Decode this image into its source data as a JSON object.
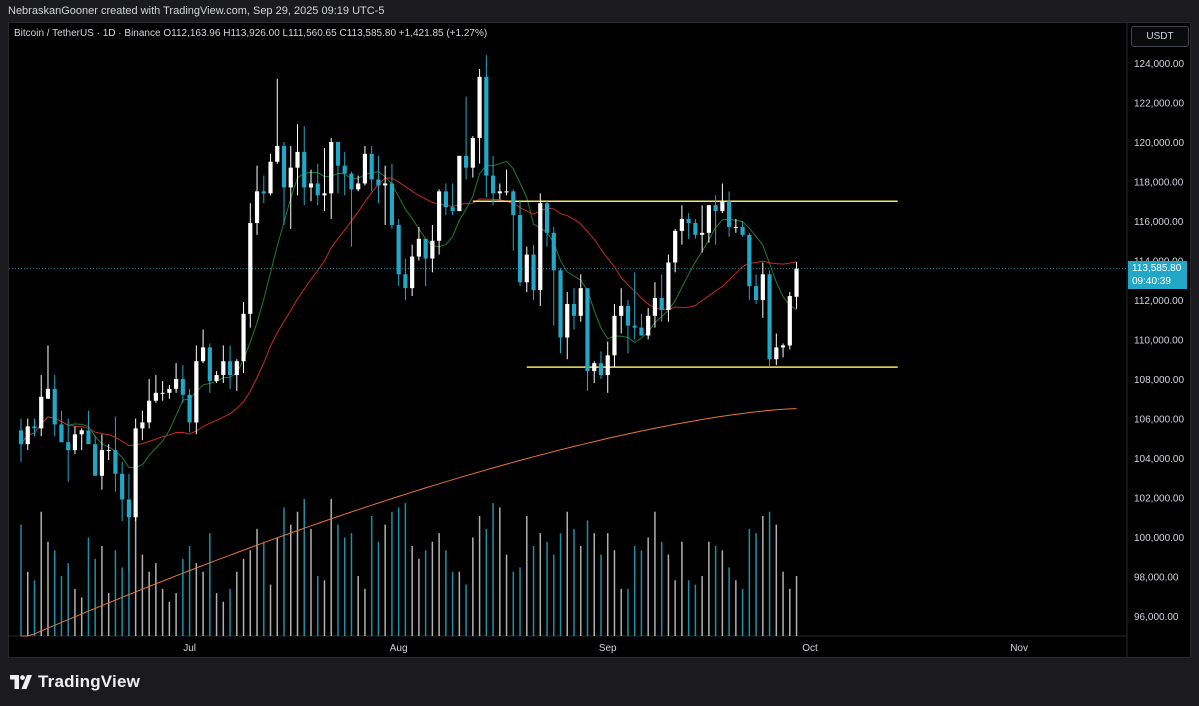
{
  "header": {
    "created_note": "NebraskanGooner created with TradingView.com, Sep 29, 2025 09:19 UTC-5"
  },
  "legend": {
    "symbol": "Bitcoin / TetherUS · 1D · Binance",
    "o_label": "O",
    "o_value": "112,163.96",
    "h_label": "H",
    "h_value": "113,926.00",
    "l_label": "L",
    "l_value": "111,560.65",
    "c_label": "C",
    "c_value": "113,585.80",
    "change": "+1,421.85 (+1.27%)"
  },
  "currency_button": "USDT",
  "price_tag": {
    "price": "113,585.80",
    "countdown": "09:40:39"
  },
  "footer": {
    "logo_text": "TradingView"
  },
  "colors": {
    "background": "#000000",
    "up_candle": "#ffffff",
    "down_candle": "#22a8c6",
    "ma_short": "#1e7a3a",
    "ma_medium": "#c42a2a",
    "ma_long": "#e2773a",
    "levels": "#f5e663",
    "axis_text": "#d1d4dc"
  },
  "chart_data": {
    "type": "candlestick",
    "title": "Bitcoin / TetherUS · 1D · Binance",
    "y_axis": {
      "ticks": [
        96000,
        98000,
        100000,
        102000,
        104000,
        106000,
        108000,
        110000,
        112000,
        114000,
        116000,
        118000,
        120000,
        122000,
        124000
      ],
      "tick_labels": [
        "96,000.00",
        "98,000.00",
        "100,000.00",
        "102,000.00",
        "104,000.00",
        "106,000.00",
        "108,000.00",
        "110,000.00",
        "112,000.00",
        "114,000.00",
        "116,000.00",
        "118,000.00",
        "120,000.00",
        "122,000.00",
        "124,000.00"
      ],
      "ylim": [
        95000,
        125500
      ]
    },
    "x_axis": {
      "labels": [
        "Jul",
        "Aug",
        "Sep",
        "Oct",
        "Nov"
      ],
      "label_dates": [
        "2025-07-01",
        "2025-08-01",
        "2025-09-01",
        "2025-10-01",
        "2025-11-01"
      ],
      "start_date": "2025-06-06",
      "end_date": "2025-11-17"
    },
    "horizontal_levels": [
      {
        "value": 117000,
        "from": "2025-08-12",
        "to": "2025-10-14"
      },
      {
        "value": 108600,
        "from": "2025-08-20",
        "to": "2025-10-14"
      }
    ],
    "last_price": 113585.8,
    "candles": [
      {
        "d": "2025-06-06",
        "o": 105400,
        "h": 106000,
        "l": 103800,
        "c": 104700
      },
      {
        "d": "2025-06-07",
        "o": 104700,
        "h": 106000,
        "l": 104400,
        "c": 105600
      },
      {
        "d": "2025-06-08",
        "o": 105600,
        "h": 106000,
        "l": 105100,
        "c": 105500
      },
      {
        "d": "2025-06-09",
        "o": 105500,
        "h": 108200,
        "l": 105100,
        "c": 107100
      },
      {
        "d": "2025-06-10",
        "o": 107000,
        "h": 109700,
        "l": 107000,
        "c": 107500
      },
      {
        "d": "2025-06-11",
        "o": 107500,
        "h": 108200,
        "l": 105100,
        "c": 105700
      },
      {
        "d": "2025-06-12",
        "o": 105700,
        "h": 106400,
        "l": 104800,
        "c": 104800
      },
      {
        "d": "2025-06-13",
        "o": 104800,
        "h": 106000,
        "l": 102800,
        "c": 104400
      },
      {
        "d": "2025-06-14",
        "o": 104400,
        "h": 105600,
        "l": 104200,
        "c": 105200
      },
      {
        "d": "2025-06-15",
        "o": 105200,
        "h": 105500,
        "l": 104400,
        "c": 105400
      },
      {
        "d": "2025-06-16",
        "o": 105400,
        "h": 106400,
        "l": 104900,
        "c": 104700
      },
      {
        "d": "2025-06-17",
        "o": 104700,
        "h": 105100,
        "l": 103100,
        "c": 103100
      },
      {
        "d": "2025-06-18",
        "o": 103100,
        "h": 105200,
        "l": 102400,
        "c": 104400
      },
      {
        "d": "2025-06-19",
        "o": 104400,
        "h": 104700,
        "l": 103900,
        "c": 104400
      },
      {
        "d": "2025-06-20",
        "o": 104400,
        "h": 106100,
        "l": 102300,
        "c": 103200
      },
      {
        "d": "2025-06-21",
        "o": 103200,
        "h": 103800,
        "l": 100800,
        "c": 101900
      },
      {
        "d": "2025-06-22",
        "o": 101900,
        "h": 103200,
        "l": 98200,
        "c": 101000
      },
      {
        "d": "2025-06-23",
        "o": 101000,
        "h": 106000,
        "l": 100800,
        "c": 105500
      },
      {
        "d": "2025-06-24",
        "o": 105500,
        "h": 106400,
        "l": 104900,
        "c": 105800
      },
      {
        "d": "2025-06-25",
        "o": 105800,
        "h": 108000,
        "l": 105500,
        "c": 106900
      },
      {
        "d": "2025-06-26",
        "o": 106900,
        "h": 108200,
        "l": 106800,
        "c": 107300
      },
      {
        "d": "2025-06-27",
        "o": 107300,
        "h": 107900,
        "l": 106900,
        "c": 107300
      },
      {
        "d": "2025-06-28",
        "o": 107300,
        "h": 107700,
        "l": 107000,
        "c": 107500
      },
      {
        "d": "2025-06-29",
        "o": 107500,
        "h": 108800,
        "l": 107300,
        "c": 108000
      },
      {
        "d": "2025-06-30",
        "o": 108000,
        "h": 108700,
        "l": 106800,
        "c": 107200
      },
      {
        "d": "2025-07-01",
        "o": 107200,
        "h": 107500,
        "l": 105300,
        "c": 105800
      },
      {
        "d": "2025-07-02",
        "o": 105800,
        "h": 109700,
        "l": 105200,
        "c": 108900
      },
      {
        "d": "2025-07-03",
        "o": 108900,
        "h": 110500,
        "l": 108800,
        "c": 109600
      },
      {
        "d": "2025-07-04",
        "o": 109600,
        "h": 109800,
        "l": 107300,
        "c": 107900
      },
      {
        "d": "2025-07-05",
        "o": 107900,
        "h": 108400,
        "l": 107800,
        "c": 108200
      },
      {
        "d": "2025-07-06",
        "o": 108200,
        "h": 109700,
        "l": 107800,
        "c": 108900
      },
      {
        "d": "2025-07-07",
        "o": 108900,
        "h": 109700,
        "l": 107500,
        "c": 108200
      },
      {
        "d": "2025-07-08",
        "o": 108200,
        "h": 109000,
        "l": 107400,
        "c": 108900
      },
      {
        "d": "2025-07-09",
        "o": 108900,
        "h": 111900,
        "l": 108300,
        "c": 111300
      },
      {
        "d": "2025-07-10",
        "o": 111300,
        "h": 116900,
        "l": 110600,
        "c": 115900
      },
      {
        "d": "2025-07-11",
        "o": 115900,
        "h": 118800,
        "l": 115300,
        "c": 117500
      },
      {
        "d": "2025-07-12",
        "o": 117500,
        "h": 118300,
        "l": 116900,
        "c": 117400
      },
      {
        "d": "2025-07-13",
        "o": 117400,
        "h": 119400,
        "l": 117300,
        "c": 119000
      },
      {
        "d": "2025-07-14",
        "o": 119000,
        "h": 123200,
        "l": 118900,
        "c": 119800
      },
      {
        "d": "2025-07-15",
        "o": 119800,
        "h": 120000,
        "l": 115800,
        "c": 117700
      },
      {
        "d": "2025-07-16",
        "o": 117700,
        "h": 119800,
        "l": 115600,
        "c": 118700
      },
      {
        "d": "2025-07-17",
        "o": 118700,
        "h": 120900,
        "l": 117300,
        "c": 119500
      },
      {
        "d": "2025-07-18",
        "o": 119500,
        "h": 120800,
        "l": 116800,
        "c": 117700
      },
      {
        "d": "2025-07-19",
        "o": 117700,
        "h": 118600,
        "l": 117000,
        "c": 117900
      },
      {
        "d": "2025-07-20",
        "o": 117900,
        "h": 118900,
        "l": 116800,
        "c": 117300
      },
      {
        "d": "2025-07-21",
        "o": 117300,
        "h": 119700,
        "l": 116500,
        "c": 117400
      },
      {
        "d": "2025-07-22",
        "o": 117400,
        "h": 120200,
        "l": 116100,
        "c": 120000
      },
      {
        "d": "2025-07-23",
        "o": 120000,
        "h": 120000,
        "l": 117400,
        "c": 118800
      },
      {
        "d": "2025-07-24",
        "o": 118800,
        "h": 119500,
        "l": 117300,
        "c": 118400
      },
      {
        "d": "2025-07-25",
        "o": 118400,
        "h": 118500,
        "l": 114700,
        "c": 117600
      },
      {
        "d": "2025-07-26",
        "o": 117600,
        "h": 118300,
        "l": 117500,
        "c": 117900
      },
      {
        "d": "2025-07-27",
        "o": 117900,
        "h": 119800,
        "l": 117800,
        "c": 119400
      },
      {
        "d": "2025-07-28",
        "o": 119400,
        "h": 119800,
        "l": 117500,
        "c": 118100
      },
      {
        "d": "2025-07-29",
        "o": 118100,
        "h": 119300,
        "l": 116900,
        "c": 117800
      },
      {
        "d": "2025-07-30",
        "o": 117800,
        "h": 118800,
        "l": 115800,
        "c": 117900
      },
      {
        "d": "2025-07-31",
        "o": 117900,
        "h": 118900,
        "l": 115600,
        "c": 115800
      },
      {
        "d": "2025-08-01",
        "o": 115800,
        "h": 116100,
        "l": 112700,
        "c": 113300
      },
      {
        "d": "2025-08-02",
        "o": 113300,
        "h": 114100,
        "l": 112000,
        "c": 112600
      },
      {
        "d": "2025-08-03",
        "o": 112600,
        "h": 114800,
        "l": 112200,
        "c": 114200
      },
      {
        "d": "2025-08-04",
        "o": 114200,
        "h": 115700,
        "l": 114000,
        "c": 115100
      },
      {
        "d": "2025-08-05",
        "o": 115100,
        "h": 115100,
        "l": 112700,
        "c": 114100
      },
      {
        "d": "2025-08-06",
        "o": 114100,
        "h": 115800,
        "l": 113400,
        "c": 115000
      },
      {
        "d": "2025-08-07",
        "o": 115000,
        "h": 117600,
        "l": 114300,
        "c": 117500
      },
      {
        "d": "2025-08-08",
        "o": 117500,
        "h": 117900,
        "l": 116300,
        "c": 116700
      },
      {
        "d": "2025-08-09",
        "o": 116700,
        "h": 117900,
        "l": 116300,
        "c": 116500
      },
      {
        "d": "2025-08-10",
        "o": 116500,
        "h": 119300,
        "l": 116500,
        "c": 119300
      },
      {
        "d": "2025-08-11",
        "o": 119300,
        "h": 122300,
        "l": 118100,
        "c": 118700
      },
      {
        "d": "2025-08-12",
        "o": 118700,
        "h": 120300,
        "l": 118200,
        "c": 120200
      },
      {
        "d": "2025-08-13",
        "o": 120200,
        "h": 123700,
        "l": 118900,
        "c": 123300
      },
      {
        "d": "2025-08-14",
        "o": 123300,
        "h": 124400,
        "l": 117200,
        "c": 118300
      },
      {
        "d": "2025-08-15",
        "o": 118300,
        "h": 119300,
        "l": 116800,
        "c": 117400
      },
      {
        "d": "2025-08-16",
        "o": 117400,
        "h": 117900,
        "l": 117100,
        "c": 117500
      },
      {
        "d": "2025-08-17",
        "o": 117500,
        "h": 118600,
        "l": 117300,
        "c": 117500
      },
      {
        "d": "2025-08-18",
        "o": 117500,
        "h": 117600,
        "l": 114500,
        "c": 116300
      },
      {
        "d": "2025-08-19",
        "o": 116300,
        "h": 117000,
        "l": 112700,
        "c": 112900
      },
      {
        "d": "2025-08-20",
        "o": 112900,
        "h": 114700,
        "l": 112400,
        "c": 114300
      },
      {
        "d": "2025-08-21",
        "o": 114300,
        "h": 114800,
        "l": 112000,
        "c": 112500
      },
      {
        "d": "2025-08-22",
        "o": 112500,
        "h": 117400,
        "l": 111700,
        "c": 116900
      },
      {
        "d": "2025-08-23",
        "o": 116900,
        "h": 117000,
        "l": 114700,
        "c": 115400
      },
      {
        "d": "2025-08-24",
        "o": 115400,
        "h": 115700,
        "l": 110700,
        "c": 113500
      },
      {
        "d": "2025-08-25",
        "o": 113500,
        "h": 113600,
        "l": 109300,
        "c": 110100
      },
      {
        "d": "2025-08-26",
        "o": 110100,
        "h": 112400,
        "l": 109000,
        "c": 111800
      },
      {
        "d": "2025-08-27",
        "o": 111800,
        "h": 112600,
        "l": 110500,
        "c": 111200
      },
      {
        "d": "2025-08-28",
        "o": 111200,
        "h": 113300,
        "l": 110900,
        "c": 112600
      },
      {
        "d": "2025-08-29",
        "o": 112600,
        "h": 112600,
        "l": 107400,
        "c": 108400
      },
      {
        "d": "2025-08-30",
        "o": 108400,
        "h": 108900,
        "l": 107800,
        "c": 108800
      },
      {
        "d": "2025-08-31",
        "o": 108800,
        "h": 109400,
        "l": 108000,
        "c": 108200
      },
      {
        "d": "2025-09-01",
        "o": 108200,
        "h": 109900,
        "l": 107300,
        "c": 109200
      },
      {
        "d": "2025-09-02",
        "o": 109200,
        "h": 111800,
        "l": 108600,
        "c": 111200
      },
      {
        "d": "2025-09-03",
        "o": 111200,
        "h": 112600,
        "l": 110300,
        "c": 111700
      },
      {
        "d": "2025-09-04",
        "o": 111700,
        "h": 112000,
        "l": 109300,
        "c": 110700
      },
      {
        "d": "2025-09-05",
        "o": 110700,
        "h": 113400,
        "l": 110000,
        "c": 110600
      },
      {
        "d": "2025-09-06",
        "o": 110600,
        "h": 111300,
        "l": 110200,
        "c": 110200
      },
      {
        "d": "2025-09-07",
        "o": 110200,
        "h": 111600,
        "l": 110000,
        "c": 111200
      },
      {
        "d": "2025-09-08",
        "o": 111200,
        "h": 112900,
        "l": 110600,
        "c": 112100
      },
      {
        "d": "2025-09-09",
        "o": 112100,
        "h": 113300,
        "l": 110900,
        "c": 111500
      },
      {
        "d": "2025-09-10",
        "o": 111500,
        "h": 114300,
        "l": 110900,
        "c": 113900
      },
      {
        "d": "2025-09-11",
        "o": 113900,
        "h": 115600,
        "l": 113400,
        "c": 115500
      },
      {
        "d": "2025-09-12",
        "o": 115500,
        "h": 116800,
        "l": 114800,
        "c": 116100
      },
      {
        "d": "2025-09-13",
        "o": 116100,
        "h": 116400,
        "l": 115100,
        "c": 115900
      },
      {
        "d": "2025-09-14",
        "o": 115900,
        "h": 116100,
        "l": 115100,
        "c": 115300
      },
      {
        "d": "2025-09-15",
        "o": 115300,
        "h": 116800,
        "l": 114400,
        "c": 115400
      },
      {
        "d": "2025-09-16",
        "o": 115400,
        "h": 116800,
        "l": 114900,
        "c": 116800
      },
      {
        "d": "2025-09-17",
        "o": 116800,
        "h": 117300,
        "l": 114800,
        "c": 116500
      },
      {
        "d": "2025-09-18",
        "o": 116500,
        "h": 117900,
        "l": 116400,
        "c": 117000
      },
      {
        "d": "2025-09-19",
        "o": 117000,
        "h": 117500,
        "l": 115200,
        "c": 115700
      },
      {
        "d": "2025-09-20",
        "o": 115700,
        "h": 116100,
        "l": 115400,
        "c": 115700
      },
      {
        "d": "2025-09-21",
        "o": 115700,
        "h": 116000,
        "l": 115200,
        "c": 115300
      },
      {
        "d": "2025-09-22",
        "o": 115300,
        "h": 115400,
        "l": 112000,
        "c": 112700
      },
      {
        "d": "2025-09-23",
        "o": 112700,
        "h": 113300,
        "l": 111800,
        "c": 112000
      },
      {
        "d": "2025-09-24",
        "o": 112000,
        "h": 113900,
        "l": 111100,
        "c": 113300
      },
      {
        "d": "2025-09-25",
        "o": 113300,
        "h": 113500,
        "l": 108600,
        "c": 109000
      },
      {
        "d": "2025-09-26",
        "o": 109000,
        "h": 110300,
        "l": 108700,
        "c": 109600
      },
      {
        "d": "2025-09-27",
        "o": 109600,
        "h": 109800,
        "l": 109100,
        "c": 109700
      },
      {
        "d": "2025-09-28",
        "o": 109700,
        "h": 112400,
        "l": 109500,
        "c": 112200
      },
      {
        "d": "2025-09-29",
        "o": 112164,
        "h": 113926,
        "l": 111561,
        "c": 113586
      }
    ],
    "volume": {
      "note": "relative volume bars shown at bottom of price pane",
      "values": [
        52,
        30,
        26,
        58,
        44,
        40,
        28,
        34,
        22,
        18,
        46,
        36,
        42,
        20,
        40,
        32,
        62,
        70,
        38,
        30,
        34,
        22,
        16,
        20,
        36,
        42,
        34,
        30,
        48,
        20,
        16,
        22,
        30,
        36,
        40,
        50,
        44,
        24,
        46,
        60,
        52,
        58,
        64,
        50,
        28,
        26,
        64,
        52,
        46,
        48,
        28,
        22,
        56,
        44,
        52,
        58,
        60,
        62,
        42,
        36,
        40,
        44,
        48,
        40,
        30,
        30,
        24,
        46,
        56,
        50,
        62,
        60,
        38,
        30,
        32,
        56,
        42,
        48,
        44,
        38,
        48,
        58,
        50,
        42,
        54,
        48,
        38,
        48,
        40,
        22,
        22,
        42,
        40,
        46,
        58,
        44,
        38,
        26,
        44,
        26,
        24,
        28,
        44,
        42,
        40,
        32,
        26,
        22,
        50,
        48,
        56,
        58,
        52,
        30,
        22,
        28
      ]
    },
    "moving_averages": [
      {
        "color": "#1e7a3a",
        "period_label": "short"
      },
      {
        "color": "#c42a2a",
        "period_label": "medium"
      },
      {
        "color": "#e2773a",
        "period_label": "long"
      }
    ]
  }
}
